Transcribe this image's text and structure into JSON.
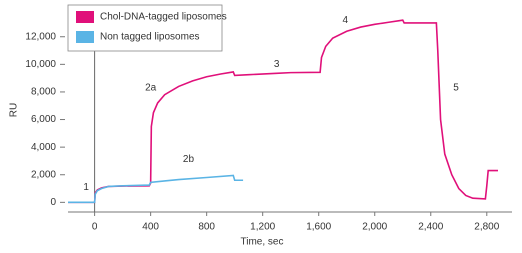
{
  "chart_data": {
    "type": "line",
    "x_label": "Time, sec",
    "y_label": "RU",
    "xlim": [
      -190,
      2980
    ],
    "ylim": [
      -700,
      14300
    ],
    "xticks": [
      0,
      400,
      800,
      {
        "value": 1200,
        "label": "1,200"
      },
      {
        "value": 1600,
        "label": "1,600"
      },
      {
        "value": 2000,
        "label": "2,000"
      },
      {
        "value": 2400,
        "label": "2,400"
      },
      {
        "value": 2800,
        "label": "2,800"
      }
    ],
    "yticks": [
      0,
      {
        "value": 2000,
        "label": "2,000"
      },
      {
        "value": 4000,
        "label": "4,000"
      },
      {
        "value": 6000,
        "label": "6,000"
      },
      {
        "value": 8000,
        "label": "8,000"
      },
      {
        "value": 10000,
        "label": "10,000"
      },
      {
        "value": 12000,
        "label": "12,000"
      }
    ],
    "grid": false,
    "legend": "top-left",
    "series": [
      {
        "name": "Chol-DNA-tagged liposomes",
        "color": "#e0107a",
        "x": [
          -190,
          0,
          5,
          20,
          50,
          100,
          200,
          390,
          400,
          405,
          420,
          450,
          500,
          600,
          700,
          800,
          900,
          990,
          1000,
          1100,
          1300,
          1400,
          1610,
          1620,
          1650,
          1700,
          1800,
          1900,
          2000,
          2100,
          2200,
          2210,
          2440,
          2450,
          2470,
          2500,
          2550,
          2600,
          2650,
          2700,
          2790,
          2800,
          2810,
          2880
        ],
        "values": [
          0,
          0,
          700,
          900,
          1050,
          1150,
          1180,
          1200,
          1400,
          5500,
          6500,
          7200,
          7800,
          8400,
          8800,
          9100,
          9300,
          9450,
          9200,
          9250,
          9350,
          9400,
          9420,
          10500,
          11300,
          11900,
          12400,
          12700,
          12900,
          13050,
          13200,
          13000,
          13000,
          11000,
          6000,
          3500,
          2000,
          1000,
          500,
          300,
          250,
          1200,
          2300,
          2300
        ]
      },
      {
        "name": "Non tagged liposomes",
        "color": "#5ab4e5",
        "x": [
          -190,
          0,
          5,
          20,
          50,
          100,
          200,
          390,
          400,
          500,
          600,
          800,
          990,
          1000,
          1060
        ],
        "values": [
          0,
          0,
          600,
          850,
          1000,
          1150,
          1200,
          1250,
          1450,
          1550,
          1650,
          1800,
          1950,
          1600,
          1600
        ]
      }
    ],
    "annotations": [
      {
        "text": "1",
        "x": -60,
        "y": 1100
      },
      {
        "text": "2a",
        "x": 400,
        "y": 8300
      },
      {
        "text": "2b",
        "x": 670,
        "y": 3100
      },
      {
        "text": "3",
        "x": 1300,
        "y": 10000
      },
      {
        "text": "4",
        "x": 1790,
        "y": 13200
      },
      {
        "text": "5",
        "x": 2580,
        "y": 8300
      }
    ]
  }
}
